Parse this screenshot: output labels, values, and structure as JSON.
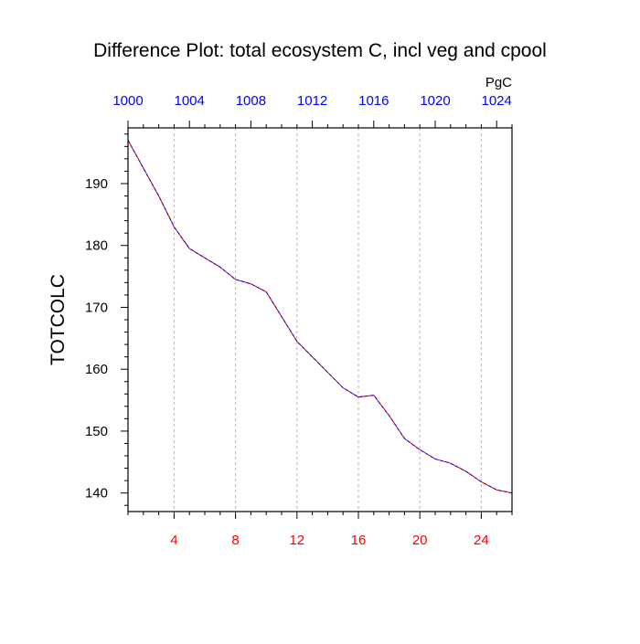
{
  "chart_data": {
    "type": "line",
    "title": "Difference Plot: total ecosystem C, incl veg and cpool",
    "ylabel": "TOTCOLC",
    "xlabel": "",
    "top_axis_unit": "PgC",
    "bottom_axis": {
      "range": [
        1,
        26
      ],
      "ticks": [
        4,
        8,
        12,
        16,
        20,
        24
      ],
      "tick_labels": [
        "4",
        "8",
        "12",
        "16",
        "20",
        "24"
      ],
      "color": "#ff0000"
    },
    "top_axis": {
      "range": [
        1000,
        1025
      ],
      "ticks": [
        1000,
        1004,
        1008,
        1012,
        1016,
        1020,
        1024
      ],
      "tick_labels": [
        "1000",
        "1004",
        "1008",
        "1012",
        "1016",
        "1020",
        "1024"
      ],
      "color": "#0000ff"
    },
    "y_axis": {
      "range": [
        137,
        199
      ],
      "ticks": [
        140,
        150,
        160,
        170,
        180,
        190
      ],
      "tick_labels": [
        "140",
        "150",
        "160",
        "170",
        "180",
        "190"
      ]
    },
    "grid": "vertical-dashed",
    "series": [
      {
        "name": "TOTCOLC",
        "color": "#cc0000",
        "overlay_color": "#0000ff",
        "x": [
          1,
          2,
          3,
          4,
          5,
          6,
          7,
          8,
          9,
          10,
          11,
          12,
          13,
          14,
          15,
          16,
          17,
          18,
          19,
          20,
          21,
          22,
          23,
          24,
          25,
          26
        ],
        "values": [
          197.0,
          192.5,
          188.0,
          183.0,
          179.5,
          178.0,
          176.5,
          174.5,
          173.8,
          172.5,
          168.5,
          164.5,
          162.0,
          159.5,
          157.0,
          155.5,
          155.8,
          152.5,
          148.8,
          147.0,
          145.5,
          144.8,
          143.5,
          141.8,
          140.5,
          140.0
        ]
      }
    ]
  }
}
